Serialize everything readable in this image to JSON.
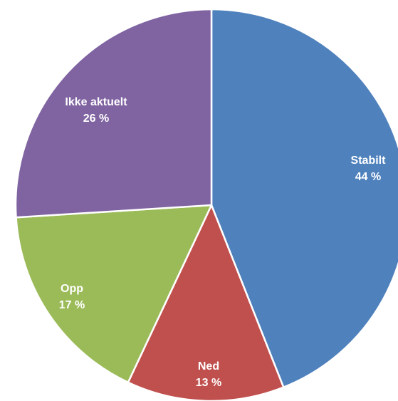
{
  "chart_data": {
    "type": "pie",
    "slices": [
      {
        "label": "Stabilt",
        "value": 44,
        "value_label": "44 %",
        "color": "#4f81bd"
      },
      {
        "label": "Ned",
        "value": 13,
        "value_label": "13 %",
        "color": "#c0504d"
      },
      {
        "label": "Opp",
        "value": 17,
        "value_label": "17 %",
        "color": "#9bbb59"
      },
      {
        "label": "Ikke aktuelt",
        "value": 26,
        "value_label": "26 %",
        "color": "#8064a2"
      }
    ],
    "start_angle": "12 o'clock",
    "direction": "clockwise",
    "legend": "none",
    "labels": "inside slices"
  }
}
